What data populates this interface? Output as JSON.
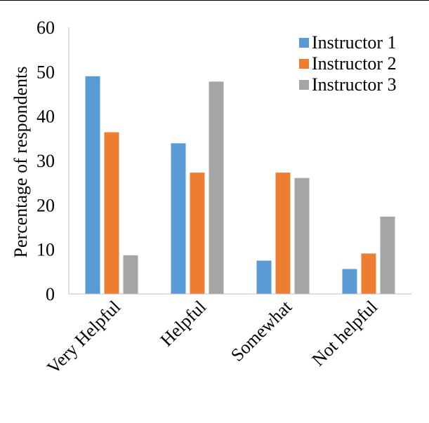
{
  "chart_data": {
    "type": "bar",
    "title": "",
    "xlabel": "",
    "ylabel": "Percentage of respondents",
    "ylim": [
      0,
      60
    ],
    "yticks": [
      0,
      10,
      20,
      30,
      40,
      50,
      60
    ],
    "grid": false,
    "legend_position": "top-right",
    "categories": [
      "Very Helpful",
      "Helpful",
      "Somewhat",
      "Not helpful"
    ],
    "series": [
      {
        "name": "Instructor 1",
        "color": "#5B9BD5",
        "values": [
          49.0,
          33.9,
          7.5,
          5.6
        ]
      },
      {
        "name": "Instructor 2",
        "color": "#ED7D31",
        "values": [
          36.4,
          27.3,
          27.3,
          9.1
        ]
      },
      {
        "name": "Instructor 3",
        "color": "#A5A5A5",
        "values": [
          8.7,
          47.8,
          26.1,
          17.4
        ]
      }
    ]
  }
}
